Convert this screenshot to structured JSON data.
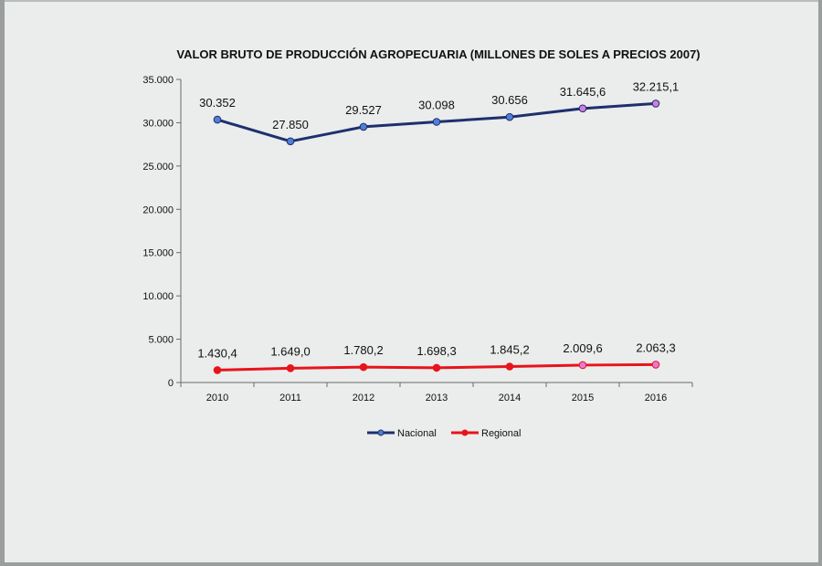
{
  "chart_data": {
    "type": "line",
    "title": "VALOR BRUTO DE PRODUCCIÓN AGROPECUARIA (MILLONES DE SOLES A PRECIOS 2007)",
    "xlabel": "",
    "ylabel": "",
    "categories": [
      "2010",
      "2011",
      "2012",
      "2013",
      "2014",
      "2015",
      "2016"
    ],
    "ylim": [
      0,
      35000
    ],
    "yticks": [
      0,
      5000,
      10000,
      15000,
      20000,
      25000,
      30000,
      35000
    ],
    "ytick_labels": [
      "0",
      "5.000",
      "10.000",
      "15.000",
      "20.000",
      "25.000",
      "30.000",
      "35.000"
    ],
    "grid": false,
    "legend_position": "bottom",
    "series": [
      {
        "name": "Nacional",
        "color": "#1f2f6e",
        "marker_color": "#4f7fd6",
        "highlight_marker_color": "#d27de0",
        "values": [
          30352,
          27850,
          29527,
          30098,
          30656,
          31645.6,
          32215.1
        ],
        "labels": [
          "30.352",
          "27.850",
          "29.527",
          "30.098",
          "30.656",
          "31.645,6",
          "32.215,1"
        ]
      },
      {
        "name": "Regional",
        "color": "#e8141c",
        "marker_color": "#e8141c",
        "highlight_marker_color": "#e27ad8",
        "values": [
          1430.4,
          1649.0,
          1780.2,
          1698.3,
          1845.2,
          2009.6,
          2063.3
        ],
        "labels": [
          "1.430,4",
          "1.649,0",
          "1.780,2",
          "1.698,3",
          "1.845,2",
          "2.009,6",
          "2.063,3"
        ]
      }
    ]
  }
}
